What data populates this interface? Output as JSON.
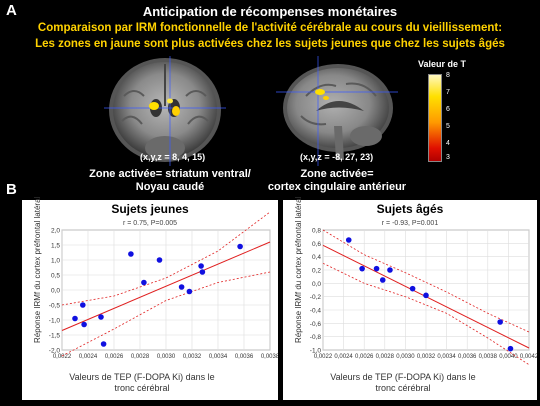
{
  "panel_a_letter": "A",
  "panel_b_letter": "B",
  "title": "Anticipation de récompenses monétaires",
  "subtitle_line1": "Comparaison par IRM fonctionnelle de l'activité cérébrale au cours du vieillissement:",
  "subtitle_line2": "Les zones en jaune sont plus activées chez les sujets jeunes que chez les sujets âgés",
  "colorbar": {
    "label": "Valeur de T",
    "ticks": [
      "8",
      "7",
      "6",
      "5",
      "4",
      "3"
    ]
  },
  "brain_left": {
    "coords": "(x,y,z = 8, 4, 15)",
    "caption_line1": "Zone activée= striatum ventral/",
    "caption_line2": "Noyau caudé"
  },
  "brain_right": {
    "coords": "(x,y,z = -8, 27, 23)",
    "caption_line1": "Zone activée=",
    "caption_line2": "cortex cingulaire antérieur"
  },
  "chart_data": [
    {
      "type": "scatter",
      "title": "Sujets jeunes",
      "stat": "r = 0.75, P=0.005",
      "xlabel": "Valeurs de TEP (F-DOPA Ki) dans le tronc cérébral",
      "ylabel": "Réponse IRMf du cortex préfrontal latéral",
      "xlim": [
        0.0022,
        0.0038
      ],
      "ylim": [
        -2.0,
        2.0
      ],
      "xticks": [
        "0,0022",
        "0,0024",
        "0,0026",
        "0,0028",
        "0,0030",
        "0,0032",
        "0,0034",
        "0,0036",
        "0,0038"
      ],
      "yticks": [
        "2,0",
        "1,5",
        "1,0",
        "0,5",
        "0,0",
        "-0,5",
        "-1,0",
        "-1,5",
        "-2,0"
      ],
      "x": [
        0.0023,
        0.00236,
        0.00237,
        0.0025,
        0.00252,
        0.00273,
        0.00283,
        0.00295,
        0.00312,
        0.00318,
        0.00327,
        0.00328,
        0.00357
      ],
      "y": [
        -0.95,
        -0.5,
        -1.15,
        -0.9,
        -1.8,
        1.2,
        0.25,
        1.0,
        0.1,
        -0.05,
        0.8,
        0.6,
        1.45
      ],
      "fit": [
        [
          0.0022,
          -1.35
        ],
        [
          0.0038,
          1.6
        ]
      ],
      "ci_upper": [
        [
          0.0022,
          -0.5
        ],
        [
          0.0026,
          -0.2
        ],
        [
          0.003,
          0.4
        ],
        [
          0.0034,
          1.3
        ],
        [
          0.0038,
          2.6
        ]
      ],
      "ci_lower": [
        [
          0.0022,
          -2.2
        ],
        [
          0.0026,
          -1.3
        ],
        [
          0.003,
          -0.35
        ],
        [
          0.0034,
          0.25
        ],
        [
          0.0038,
          0.6
        ]
      ],
      "point_color": "#1010e0",
      "line_color": "#e02020"
    },
    {
      "type": "scatter",
      "title": "Sujets âgés",
      "stat": "r = -0.93, P=0.001",
      "xlabel": "Valeurs de TEP (F-DOPA Ki) dans le tronc cérébral",
      "ylabel": "Réponse IRMf du cortex préfrontal latéral",
      "xlim": [
        0.0022,
        0.0042
      ],
      "ylim": [
        -1.0,
        0.8
      ],
      "xticks": [
        "0,0022",
        "0,0024",
        "0,0026",
        "0,0028",
        "0,0030",
        "0,0032",
        "0,0034",
        "0,0036",
        "0,0038",
        "0,0040",
        "0,0042"
      ],
      "yticks": [
        "0,8",
        "0,6",
        "0,4",
        "0,2",
        "0,0",
        "-0,2",
        "-0,4",
        "-0,6",
        "-0,8",
        "-1,0"
      ],
      "x": [
        0.00245,
        0.00258,
        0.00272,
        0.00278,
        0.00285,
        0.00307,
        0.0032,
        0.00392,
        0.00402
      ],
      "y": [
        0.65,
        0.22,
        0.22,
        0.05,
        0.2,
        -0.08,
        -0.18,
        -0.58,
        -0.98
      ],
      "fit": [
        [
          0.0022,
          0.57
        ],
        [
          0.0042,
          -0.97
        ]
      ],
      "ci_upper": [
        [
          0.0022,
          0.8
        ],
        [
          0.0026,
          0.43
        ],
        [
          0.003,
          0.16
        ],
        [
          0.0034,
          -0.13
        ],
        [
          0.0038,
          -0.45
        ],
        [
          0.0042,
          -0.73
        ]
      ],
      "ci_lower": [
        [
          0.0022,
          0.3
        ],
        [
          0.0026,
          0.0
        ],
        [
          0.003,
          -0.2
        ],
        [
          0.0034,
          -0.45
        ],
        [
          0.0038,
          -0.82
        ],
        [
          0.0042,
          -1.22
        ]
      ],
      "point_color": "#1010e0",
      "line_color": "#e02020"
    }
  ]
}
